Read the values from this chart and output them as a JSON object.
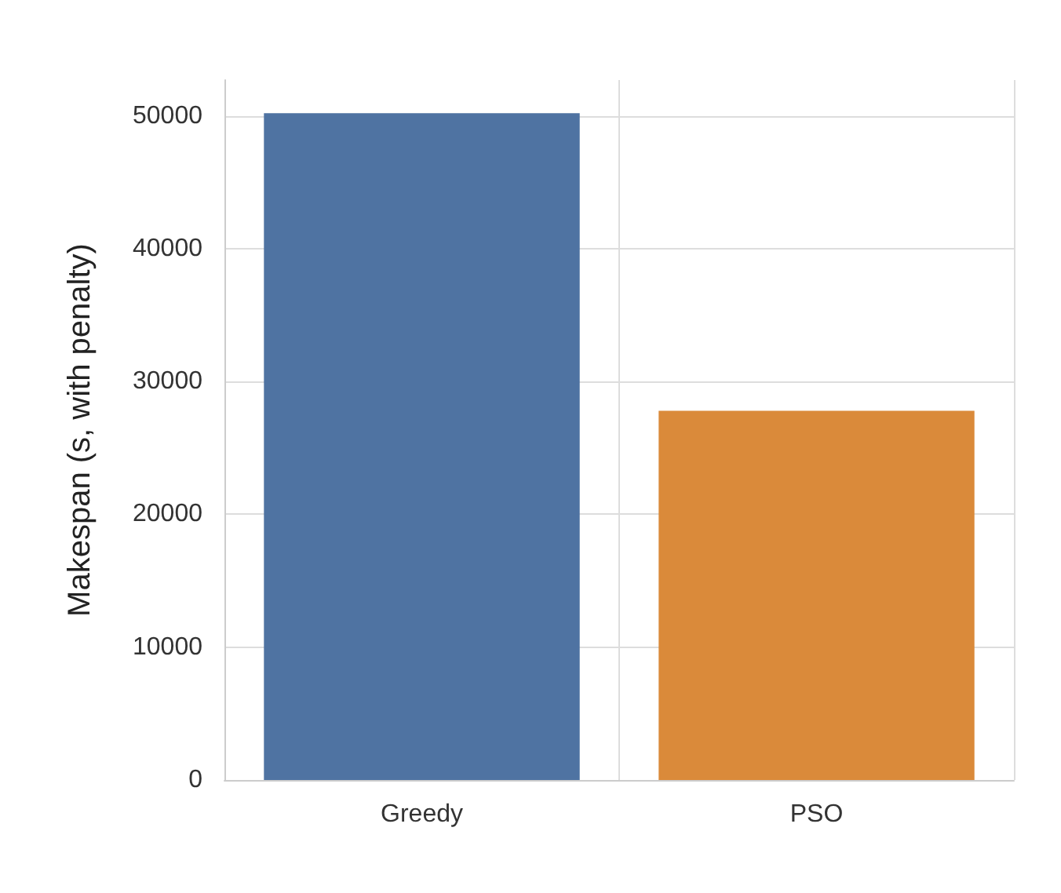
{
  "chart_data": {
    "type": "bar",
    "ylabel": "Makespan (s, with penalty)",
    "categories": [
      "Greedy",
      "PSO"
    ],
    "values": [
      50200,
      27800
    ],
    "colors": [
      "#4f73a2",
      "#da8a3a"
    ],
    "ylim": [
      0,
      52700
    ],
    "yticks": [
      0,
      10000,
      20000,
      30000,
      40000,
      50000
    ],
    "grid": true
  }
}
